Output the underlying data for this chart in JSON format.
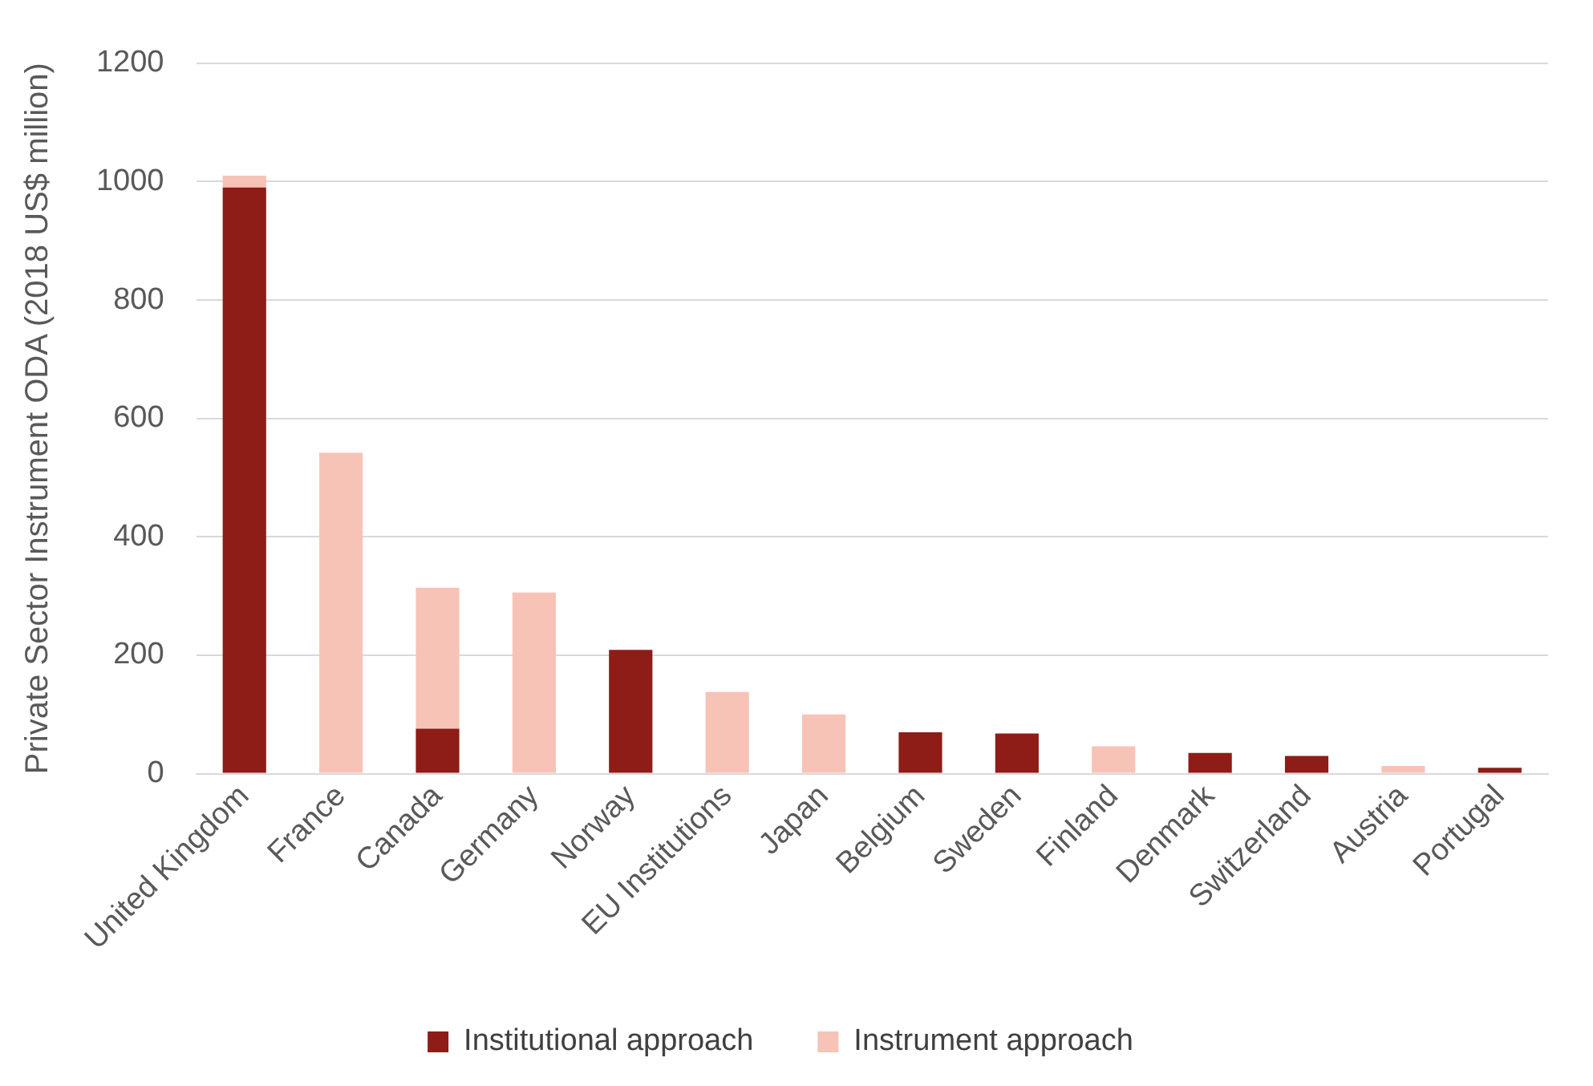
{
  "chart_data": {
    "type": "bar",
    "stacked": true,
    "ylabel": "Private Sector Instrument ODA (2018 US$ million)",
    "categories": [
      "United Kingdom",
      "France",
      "Canada",
      "Germany",
      "Norway",
      "EU Institutions",
      "Japan",
      "Belgium",
      "Sweden",
      "Finland",
      "Denmark",
      "Switzerland",
      "Austria",
      "Portugal"
    ],
    "series": [
      {
        "name": "Institutional approach",
        "color": "#8e1c17",
        "values": [
          990,
          null,
          76,
          null,
          209,
          null,
          null,
          70,
          68,
          null,
          35,
          30,
          null,
          10
        ]
      },
      {
        "name": "Instrument approach",
        "color": "#f7c3b6",
        "values": [
          20,
          542,
          238,
          306,
          null,
          138,
          100,
          null,
          null,
          46,
          null,
          null,
          13,
          null
        ]
      }
    ],
    "ylim": [
      0,
      1200
    ],
    "yticks": [
      0,
      200,
      400,
      600,
      800,
      1000,
      1200
    ],
    "grid": "y",
    "legend": "bottom"
  }
}
